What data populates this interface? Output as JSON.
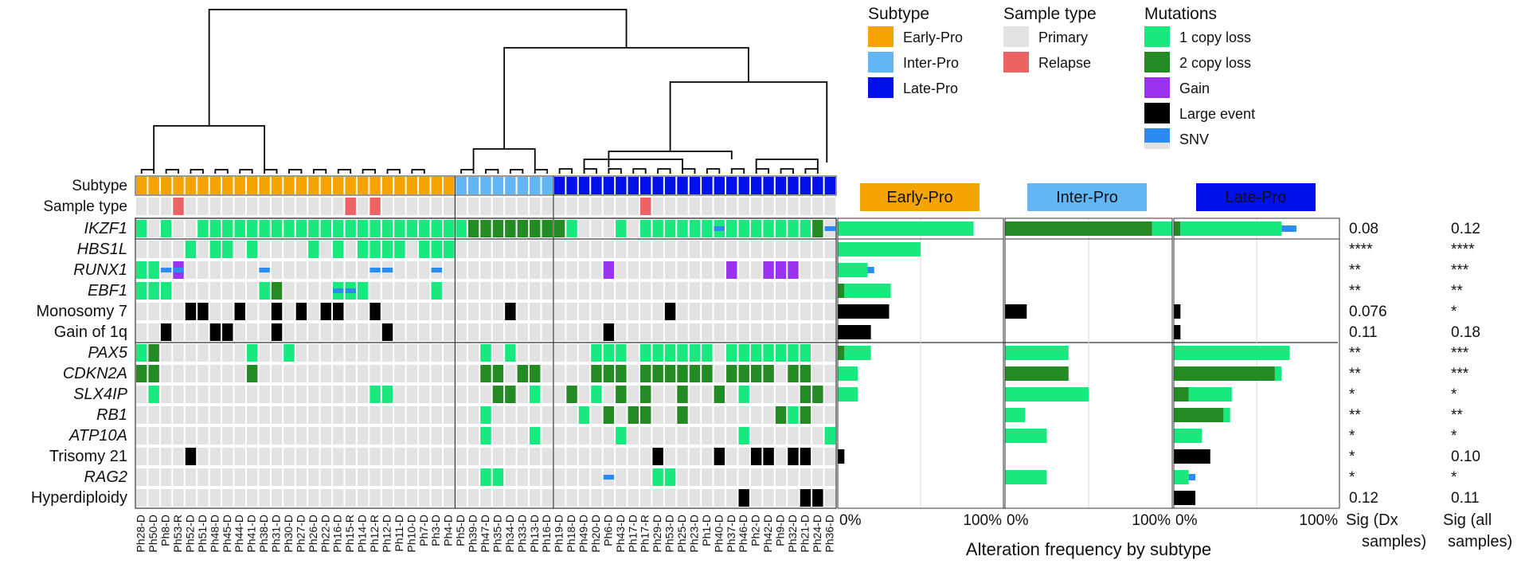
{
  "chart_data": {
    "type": "heatmap",
    "title": "",
    "samples": [
      "Ph28-D",
      "Ph50-D",
      "Ph8-D",
      "Ph53-R",
      "Ph52-D",
      "Ph51-D",
      "Ph48-D",
      "Ph45-D",
      "Ph44-D",
      "Ph41-D",
      "Ph38-D",
      "Ph31-D",
      "Ph30-D",
      "Ph27-D",
      "Ph26-D",
      "Ph22-D",
      "Ph16-D",
      "Ph15-R",
      "Ph14-D",
      "Ph12-R",
      "Ph12-D",
      "Ph11-D",
      "Ph10-D",
      "Ph7-D",
      "Ph3-D",
      "Ph4-D",
      "Ph5-D",
      "Ph39-D",
      "Ph47-D",
      "Ph35-D",
      "Ph34-D",
      "Ph33-D",
      "Ph13-D",
      "Ph16-D",
      "Ph19-D",
      "Ph18-D",
      "Ph49-D",
      "Ph20-D",
      "Ph6-D",
      "Ph43-D",
      "Ph17-D",
      "Ph17-R",
      "Ph29-D",
      "Ph53-D",
      "Ph25-D",
      "Ph23-D",
      "Ph1-D",
      "Ph40-D",
      "Ph37-D",
      "Ph46-D",
      "Ph2-D",
      "Ph42-D",
      "Ph9-D",
      "Ph32-D",
      "Ph21-D",
      "Ph24-D",
      "Ph36-D"
    ],
    "annotation_rows": [
      "Subtype",
      "Sample type"
    ],
    "alteration_rows": [
      "IKZF1",
      "HBS1L",
      "RUNX1",
      "EBF1",
      "Monosomy 7",
      "Gain of 1q",
      "PAX5",
      "CDKN2A",
      "SLX4IP",
      "RB1",
      "ATP10A",
      "Trisomy 21",
      "RAG2",
      "Hyperdiploidy"
    ],
    "italic_rows": [
      "IKZF1",
      "HBS1L",
      "RUNX1",
      "EBF1",
      "PAX5",
      "CDKN2A",
      "SLX4IP",
      "RB1",
      "ATP10A",
      "RAG2"
    ],
    "subtype": "EEEEEEEEEEEEEEEEEEEEEEEEEEIIIIIIIILLLLLLLLLLLLLLLLLLLLLLL",
    "sample_type": "PPPRPPPPPPPPPPPPPRPRPPPPPPPPPPPPPPPPPPPPPRPPPPPPPPPPPPPPP",
    "codes": {
      "_": "none",
      "1": "1 copy loss",
      "2": "2 copy loss",
      "G": "Gain",
      "B": "Large event",
      "S": "SNV",
      "X": "1 copy loss + SNV",
      "Y": "Gain + SNV"
    },
    "matrix": [
      "1_1__1111111111111111111111222222221___1_111111X11111112S",
      "____1_11_1____1_1_1111_111________________________________",
      "11SY______S________SS___S_____________G_________G__GGG____",
      "111_______12____XX1_____1__________________________________",
      "____BB__B__B_B_BB__B__________B____________B______________",
      "__B___BB___B________B_________________B__________________"
    ],
    "matrix_rows_lower": [
      "12_______1__1_______________1_1______111_111111_1111111",
      "22_______2__________________22_22____222_222222_2222_22",
      "_1_________________11________22_1__2_1_2_2__2__2_1____22",
      "____________________________1_______1_2_22__2_______212",
      "____________________________1___1______1_________1______1",
      "____B_____________________________________B____B__BB_BB__",
      "____________________________11________S___11______________",
      "_________________________________________________B____BB__"
    ],
    "legend": {
      "subtype_title": "Subtype",
      "subtype_items": [
        {
          "label": "Early-Pro",
          "color": "#f5a300"
        },
        {
          "label": "Inter-Pro",
          "color": "#63b6f5"
        },
        {
          "label": "Late-Pro",
          "color": "#0010e8"
        }
      ],
      "sample_type_title": "Sample type",
      "sample_type_items": [
        {
          "label": "Primary",
          "color": "#e2e2e2"
        },
        {
          "label": "Relapse",
          "color": "#eb6363"
        }
      ],
      "mutations_title": "Mutations",
      "mutation_items": [
        {
          "label": "1 copy loss",
          "color": "#19e87e"
        },
        {
          "label": "2 copy loss",
          "color": "#248a24"
        },
        {
          "label": "Gain",
          "color": "#9b32f0"
        },
        {
          "label": "Large event",
          "color": "#000000"
        },
        {
          "label": "SNV",
          "color": "#2a8cf0"
        }
      ]
    },
    "frequency_panels": {
      "xlabel": "Alteration frequency by subtype",
      "x_ticks": [
        "0%",
        "100%"
      ],
      "subtypes": [
        "Early-Pro",
        "Inter-Pro",
        "Late-Pro"
      ],
      "values": {
        "Early-Pro": {
          "IKZF1": [
            82,
            0,
            0
          ],
          "HBS1L": [
            50,
            0,
            0
          ],
          "RUNX1": [
            18,
            0,
            4
          ],
          "EBF1": [
            28,
            4,
            0
          ],
          "Monosomy 7": [
            31,
            0,
            0
          ],
          "Gain of 1q": [
            20,
            0,
            0
          ],
          "PAX5": [
            16,
            4,
            0
          ],
          "CDKN2A": [
            12,
            0,
            0
          ],
          "SLX4IP": [
            12,
            0,
            0
          ],
          "RB1": [
            0,
            0,
            0
          ],
          "ATP10A": [
            0,
            0,
            0
          ],
          "Trisomy 21": [
            4,
            0,
            0
          ],
          "RAG2": [
            0,
            0,
            0
          ],
          "Hyperdiploidy": [
            0,
            0,
            0
          ]
        },
        "Inter-Pro": {
          "IKZF1": [
            12,
            88,
            0
          ],
          "HBS1L": [
            0,
            0,
            0
          ],
          "RUNX1": [
            0,
            0,
            0
          ],
          "EBF1": [
            0,
            0,
            0
          ],
          "Monosomy 7": [
            13,
            0,
            0
          ],
          "Gain of 1q": [
            0,
            0,
            0
          ],
          "PAX5": [
            38,
            0,
            0
          ],
          "CDKN2A": [
            0,
            38,
            0
          ],
          "SLX4IP": [
            50,
            0,
            0
          ],
          "RB1": [
            12,
            0,
            0
          ],
          "ATP10A": [
            25,
            0,
            0
          ],
          "Trisomy 21": [
            0,
            0,
            0
          ],
          "RAG2": [
            25,
            0,
            0
          ],
          "Hyperdiploidy": [
            0,
            0,
            0
          ]
        },
        "Late-Pro": {
          "IKZF1": [
            61,
            4,
            9
          ],
          "HBS1L": [
            0,
            0,
            0
          ],
          "RUNX1": [
            0,
            0,
            0
          ],
          "EBF1": [
            0,
            0,
            0
          ],
          "Monosomy 7": [
            4,
            0,
            0
          ],
          "Gain of 1q": [
            4,
            0,
            0
          ],
          "PAX5": [
            70,
            0,
            0
          ],
          "CDKN2A": [
            4,
            61,
            0
          ],
          "SLX4IP": [
            26,
            9,
            0
          ],
          "RB1": [
            4,
            30,
            0
          ],
          "ATP10A": [
            17,
            0,
            0
          ],
          "Trisomy 21": [
            22,
            0,
            0
          ],
          "RAG2": [
            9,
            0,
            4
          ],
          "Hyperdiploidy": [
            13,
            0,
            0
          ]
        }
      }
    },
    "significance": {
      "dx_header_line1": "Sig (Dx",
      "dx_header_line2": "samples)",
      "all_header_line1": "Sig (all",
      "all_header_line2": "samples)",
      "dx": [
        "0.08",
        "****",
        "**",
        "**",
        "0.076",
        "0.11",
        "**",
        "**",
        "*",
        "**",
        "*",
        "*",
        "*",
        "0.12"
      ],
      "all": [
        "0.12",
        "****",
        "***",
        "**",
        "*",
        "0.18",
        "***",
        "***",
        "*",
        "**",
        "*",
        "0.10",
        "*",
        "0.11"
      ]
    },
    "colors": {
      "cell_empty": "#e2e2e2",
      "one_copy_loss": "#19e87e",
      "two_copy_loss": "#248a24",
      "gain": "#9b32f0",
      "large_event": "#000000",
      "snv": "#2a8cf0"
    }
  }
}
